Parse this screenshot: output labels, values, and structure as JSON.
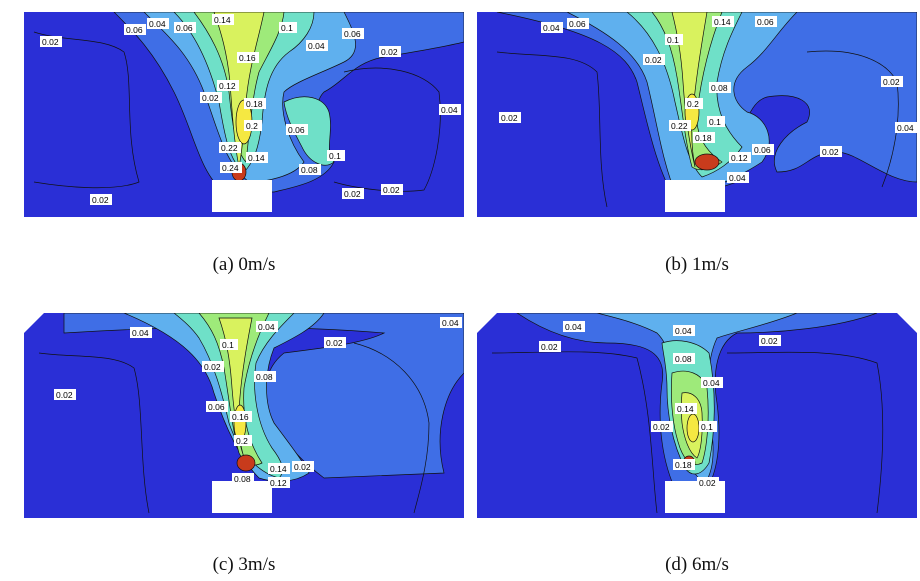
{
  "figure": {
    "panels": [
      {
        "id": "a",
        "caption": "(a) 0m/s",
        "labels": [
          "0.02",
          "0.04",
          "0.06",
          "0.1",
          "0.14",
          "0.16",
          "0.12",
          "0.18",
          "0.2",
          "0.22",
          "0.24",
          "0.14",
          "0.06",
          "0.04",
          "0.06",
          "0.02",
          "0.04",
          "0.08",
          "0.02",
          "0.02",
          "0.02",
          "0.02",
          "0.1",
          "0.06"
        ]
      },
      {
        "id": "b",
        "caption": "(b) 1m/s",
        "labels": [
          "0.04",
          "0.06",
          "0.14",
          "0.06",
          "0.02",
          "0.1",
          "0.2",
          "0.22",
          "0.18",
          "0.1",
          "0.08",
          "0.12",
          "0.06",
          "0.04",
          "0.02",
          "0.02",
          "0.04",
          "0.02"
        ]
      },
      {
        "id": "c",
        "caption": "(c) 3m/s",
        "labels": [
          "0.04",
          "0.04",
          "0.02",
          "0.04",
          "0.02",
          "0.1",
          "0.08",
          "0.06",
          "0.16",
          "0.2",
          "0.14",
          "0.12",
          "0.02",
          "0.08",
          "0.02"
        ]
      },
      {
        "id": "d",
        "caption": "(d) 6m/s",
        "labels": [
          "0.04",
          "0.02",
          "0.04",
          "0.02",
          "0.08",
          "0.04",
          "0.14",
          "0.1",
          "0.02",
          "0.18",
          "0.02"
        ]
      }
    ],
    "colors": {
      "background": "#2a2fd6",
      "level_1": "#3f6ee6",
      "level_2": "#5fb0ee",
      "level_3": "#6fe0c8",
      "level_4": "#9eea7a",
      "level_5": "#d9f25e",
      "level_6": "#f5e842",
      "hot": "#c83b1c",
      "contour_line": "#111111",
      "obstacle": "#ffffff"
    }
  }
}
